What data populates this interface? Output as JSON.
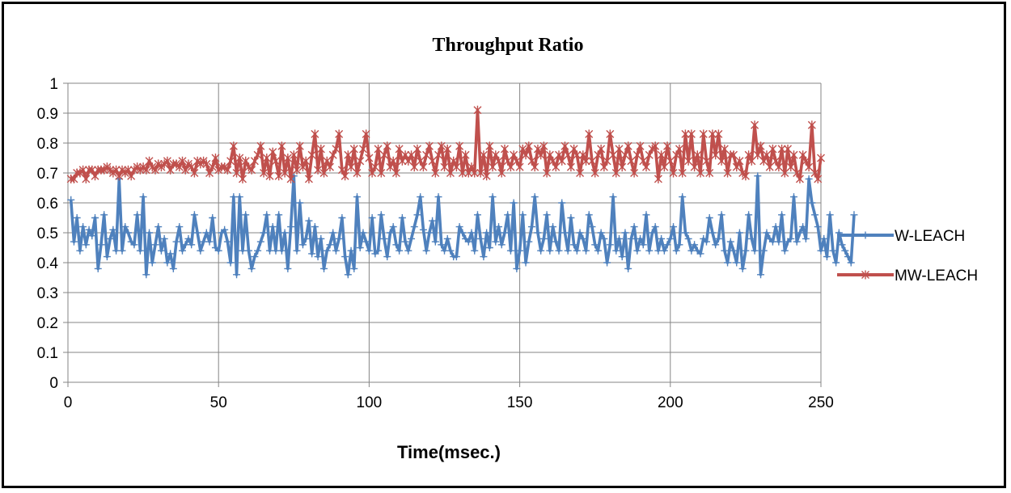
{
  "chart_data": {
    "type": "line",
    "title": "Throughput Ratio",
    "xlabel": "Time(msec.)",
    "ylabel": "",
    "xlim": [
      0,
      250
    ],
    "ylim": [
      0,
      1
    ],
    "xticks": [
      "0",
      "50",
      "100",
      "150",
      "200",
      "250"
    ],
    "yticks": [
      "0",
      "0.1",
      "0.2",
      "0.3",
      "0.4",
      "0.5",
      "0.6",
      "0.7",
      "0.8",
      "0.9",
      "1"
    ],
    "grid": true,
    "legend_position": "right",
    "series": [
      {
        "name": "W-LEACH",
        "color": "#4F81BD",
        "marker": "plus",
        "x_start": 1,
        "x_step": 1,
        "values": [
          0.61,
          0.47,
          0.55,
          0.44,
          0.52,
          0.46,
          0.51,
          0.49,
          0.55,
          0.38,
          0.46,
          0.56,
          0.42,
          0.48,
          0.51,
          0.44,
          0.68,
          0.44,
          0.52,
          0.5,
          0.47,
          0.46,
          0.56,
          0.44,
          0.62,
          0.36,
          0.5,
          0.4,
          0.46,
          0.52,
          0.44,
          0.48,
          0.4,
          0.43,
          0.38,
          0.47,
          0.52,
          0.44,
          0.46,
          0.48,
          0.46,
          0.56,
          0.5,
          0.44,
          0.47,
          0.5,
          0.47,
          0.55,
          0.45,
          0.44,
          0.5,
          0.51,
          0.47,
          0.4,
          0.62,
          0.36,
          0.62,
          0.44,
          0.56,
          0.44,
          0.38,
          0.42,
          0.44,
          0.47,
          0.5,
          0.56,
          0.44,
          0.52,
          0.44,
          0.56,
          0.44,
          0.5,
          0.38,
          0.52,
          0.69,
          0.44,
          0.6,
          0.46,
          0.48,
          0.54,
          0.43,
          0.52,
          0.42,
          0.48,
          0.38,
          0.44,
          0.46,
          0.5,
          0.44,
          0.48,
          0.55,
          0.42,
          0.36,
          0.44,
          0.38,
          0.62,
          0.45,
          0.5,
          0.47,
          0.44,
          0.55,
          0.43,
          0.44,
          0.56,
          0.48,
          0.42,
          0.5,
          0.52,
          0.46,
          0.44,
          0.55,
          0.47,
          0.44,
          0.48,
          0.52,
          0.56,
          0.62,
          0.51,
          0.44,
          0.5,
          0.54,
          0.47,
          0.62,
          0.46,
          0.44,
          0.48,
          0.44,
          0.42,
          0.42,
          0.52,
          0.5,
          0.48,
          0.47,
          0.5,
          0.44,
          0.56,
          0.48,
          0.42,
          0.5,
          0.45,
          0.62,
          0.47,
          0.52,
          0.46,
          0.5,
          0.56,
          0.44,
          0.6,
          0.38,
          0.44,
          0.56,
          0.4,
          0.47,
          0.52,
          0.62,
          0.5,
          0.44,
          0.48,
          0.56,
          0.44,
          0.52,
          0.47,
          0.44,
          0.6,
          0.5,
          0.44,
          0.55,
          0.46,
          0.44,
          0.5,
          0.48,
          0.44,
          0.56,
          0.52,
          0.46,
          0.44,
          0.5,
          0.48,
          0.4,
          0.46,
          0.62,
          0.44,
          0.48,
          0.42,
          0.5,
          0.38,
          0.48,
          0.52,
          0.44,
          0.48,
          0.46,
          0.56,
          0.44,
          0.5,
          0.52,
          0.44,
          0.48,
          0.44,
          0.46,
          0.48,
          0.52,
          0.44,
          0.46,
          0.62,
          0.5,
          0.48,
          0.44,
          0.46,
          0.44,
          0.43,
          0.48,
          0.47,
          0.55,
          0.5,
          0.46,
          0.48,
          0.56,
          0.44,
          0.4,
          0.47,
          0.44,
          0.4,
          0.5,
          0.38,
          0.44,
          0.56,
          0.48,
          0.44,
          0.69,
          0.36,
          0.44,
          0.5,
          0.48,
          0.47,
          0.52,
          0.47,
          0.56,
          0.44,
          0.47,
          0.48,
          0.62,
          0.47,
          0.5,
          0.52,
          0.48,
          0.68,
          0.6,
          0.56,
          0.52,
          0.44,
          0.48,
          0.42,
          0.56,
          0.44,
          0.4,
          0.5,
          0.46,
          0.44,
          0.42,
          0.4,
          0.56
        ]
      },
      {
        "name": "MW-LEACH",
        "color": "#C0504D",
        "marker": "asterisk",
        "x_start": 1,
        "x_step": 1,
        "values": [
          0.68,
          0.68,
          0.7,
          0.7,
          0.71,
          0.68,
          0.71,
          0.71,
          0.69,
          0.71,
          0.71,
          0.71,
          0.72,
          0.71,
          0.7,
          0.71,
          0.69,
          0.71,
          0.7,
          0.71,
          0.69,
          0.71,
          0.72,
          0.71,
          0.72,
          0.71,
          0.74,
          0.72,
          0.71,
          0.73,
          0.72,
          0.73,
          0.74,
          0.71,
          0.73,
          0.73,
          0.72,
          0.74,
          0.71,
          0.73,
          0.72,
          0.7,
          0.74,
          0.73,
          0.74,
          0.73,
          0.7,
          0.72,
          0.75,
          0.71,
          0.72,
          0.72,
          0.71,
          0.74,
          0.79,
          0.7,
          0.75,
          0.68,
          0.74,
          0.72,
          0.71,
          0.74,
          0.76,
          0.79,
          0.7,
          0.75,
          0.69,
          0.77,
          0.74,
          0.69,
          0.79,
          0.7,
          0.75,
          0.68,
          0.76,
          0.71,
          0.79,
          0.72,
          0.74,
          0.68,
          0.76,
          0.83,
          0.71,
          0.78,
          0.7,
          0.74,
          0.72,
          0.76,
          0.78,
          0.83,
          0.71,
          0.69,
          0.76,
          0.72,
          0.78,
          0.7,
          0.74,
          0.78,
          0.83,
          0.75,
          0.7,
          0.72,
          0.78,
          0.7,
          0.76,
          0.79,
          0.72,
          0.74,
          0.7,
          0.78,
          0.74,
          0.76,
          0.74,
          0.76,
          0.72,
          0.78,
          0.74,
          0.72,
          0.76,
          0.79,
          0.74,
          0.7,
          0.76,
          0.79,
          0.72,
          0.78,
          0.7,
          0.74,
          0.72,
          0.79,
          0.7,
          0.76,
          0.7,
          0.72,
          0.7,
          0.91,
          0.7,
          0.76,
          0.69,
          0.79,
          0.72,
          0.76,
          0.74,
          0.7,
          0.78,
          0.74,
          0.72,
          0.76,
          0.74,
          0.72,
          0.78,
          0.76,
          0.79,
          0.74,
          0.72,
          0.78,
          0.76,
          0.79,
          0.7,
          0.76,
          0.74,
          0.72,
          0.76,
          0.74,
          0.79,
          0.76,
          0.72,
          0.78,
          0.76,
          0.7,
          0.76,
          0.74,
          0.83,
          0.74,
          0.7,
          0.76,
          0.78,
          0.72,
          0.74,
          0.83,
          0.76,
          0.7,
          0.78,
          0.72,
          0.76,
          0.79,
          0.74,
          0.7,
          0.76,
          0.79,
          0.74,
          0.72,
          0.76,
          0.78,
          0.79,
          0.68,
          0.76,
          0.72,
          0.79,
          0.74,
          0.7,
          0.76,
          0.78,
          0.7,
          0.83,
          0.74,
          0.83,
          0.72,
          0.76,
          0.7,
          0.83,
          0.74,
          0.7,
          0.83,
          0.76,
          0.83,
          0.74,
          0.78,
          0.7,
          0.76,
          0.76,
          0.72,
          0.74,
          0.7,
          0.69,
          0.76,
          0.74,
          0.86,
          0.76,
          0.79,
          0.74,
          0.76,
          0.72,
          0.78,
          0.74,
          0.72,
          0.78,
          0.7,
          0.78,
          0.72,
          0.76,
          0.7,
          0.68,
          0.76,
          0.74,
          0.72,
          0.86,
          0.7,
          0.68,
          0.75
        ]
      }
    ]
  }
}
